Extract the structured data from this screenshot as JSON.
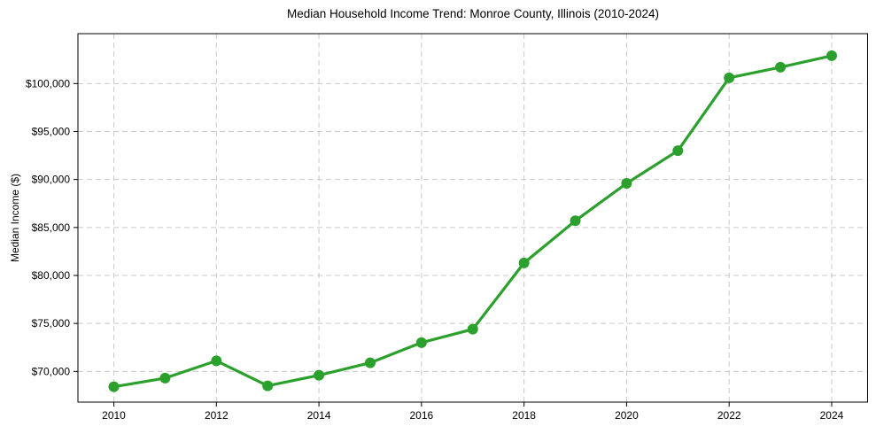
{
  "chart_data": {
    "type": "line",
    "title": "Median Household Income Trend: Monroe County, Illinois (2010-2024)",
    "xlabel": "",
    "ylabel": "Median Income ($)",
    "series_name": "Median household income",
    "x": [
      2010,
      2011,
      2012,
      2013,
      2014,
      2015,
      2016,
      2017,
      2018,
      2019,
      2020,
      2021,
      2022,
      2023,
      2024
    ],
    "values": [
      68400,
      69300,
      71100,
      68500,
      69600,
      70900,
      73000,
      74400,
      81300,
      85700,
      89600,
      93000,
      100600,
      101700,
      102900
    ],
    "xlim": [
      2009.3,
      2024.7
    ],
    "ylim": [
      66800,
      105200
    ],
    "xticks": {
      "values": [
        2010,
        2012,
        2014,
        2016,
        2018,
        2020,
        2022,
        2024
      ],
      "labels": [
        "2010",
        "2012",
        "2014",
        "2016",
        "2018",
        "2020",
        "2022",
        "2024"
      ]
    },
    "yticks": {
      "values": [
        70000,
        75000,
        80000,
        85000,
        90000,
        95000,
        100000
      ],
      "labels": [
        "$70,000",
        "$75,000",
        "$80,000",
        "$85,000",
        "$90,000",
        "$95,000",
        "$100,000"
      ]
    },
    "grid": true,
    "grid_style": "dashed",
    "legend_position": "none",
    "marker": "circle",
    "colors": {
      "line": "#2ca02c",
      "marker": "#2ca02c",
      "grid": "#c9c9c9",
      "spine": "#000000",
      "text": "#000000",
      "background": "#ffffff"
    }
  }
}
